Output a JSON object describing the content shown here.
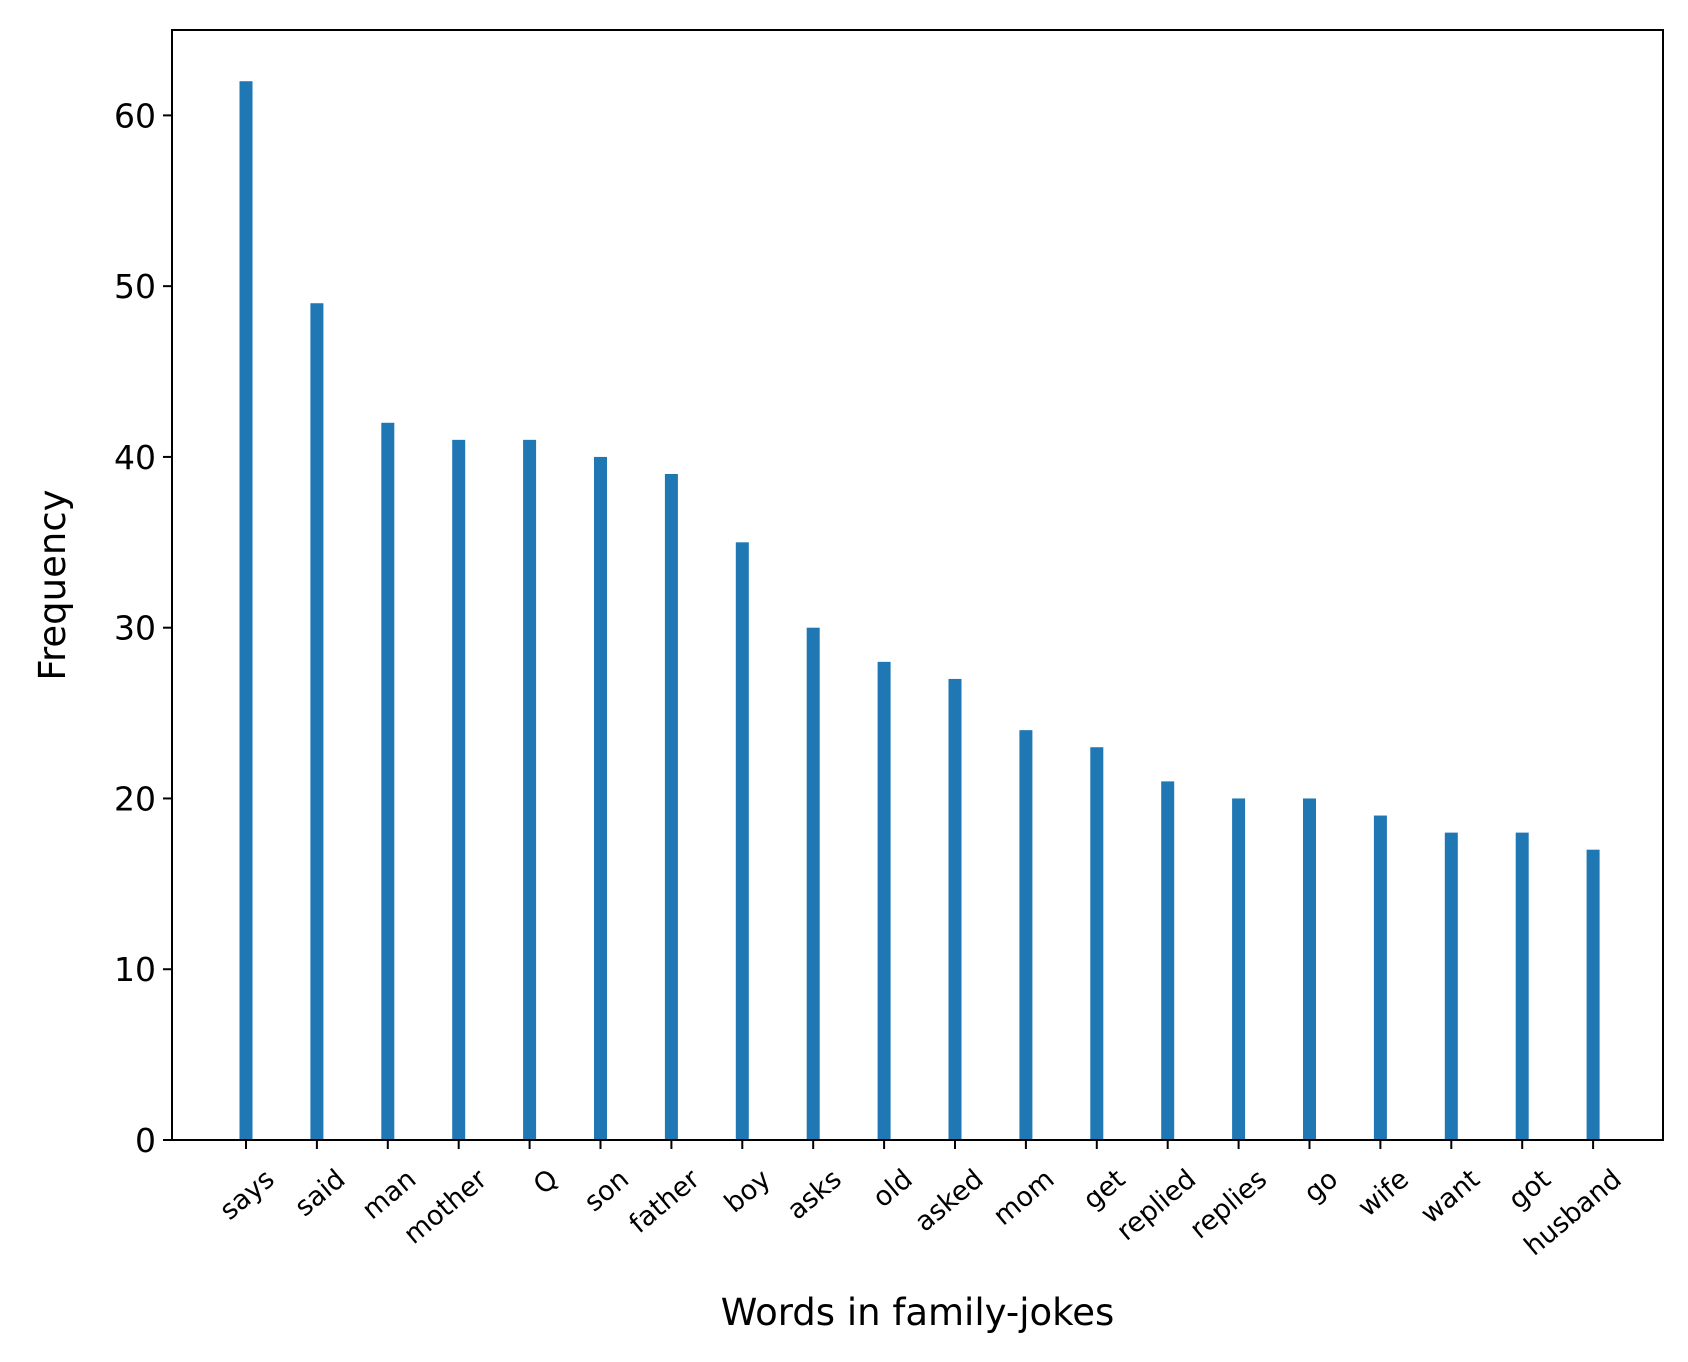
{
  "chart_data": {
    "type": "bar",
    "title": "",
    "xlabel": "Words in family-jokes",
    "ylabel": "Frequency",
    "categories": [
      "says",
      "said",
      "man",
      "mother",
      "Q",
      "son",
      "father",
      "boy",
      "asks",
      "old",
      "asked",
      "mom",
      "get",
      "replied",
      "replies",
      "go",
      "wife",
      "want",
      "got",
      "husband"
    ],
    "values": [
      62,
      49,
      42,
      41,
      41,
      40,
      39,
      35,
      30,
      28,
      27,
      24,
      23,
      21,
      20,
      20,
      19,
      18,
      18,
      17
    ],
    "ylim": [
      0,
      65
    ],
    "yticks": [
      0,
      10,
      20,
      30,
      40,
      50,
      60
    ],
    "grid": false,
    "legend": "none",
    "bar_color": "#1f77b4"
  }
}
